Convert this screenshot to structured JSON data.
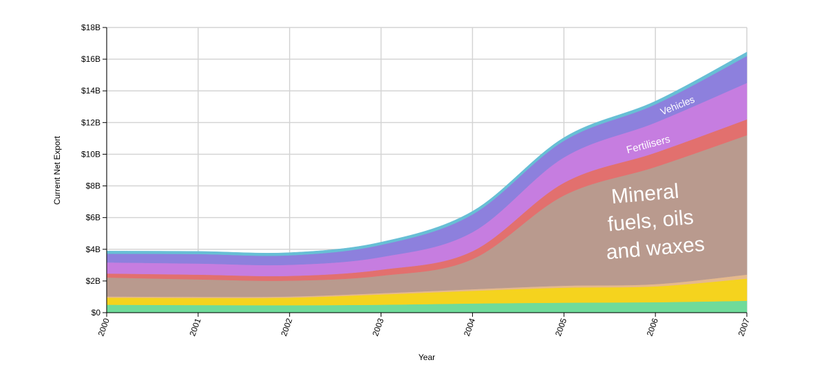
{
  "chart_data": {
    "type": "area",
    "stacked": true,
    "x": [
      2000,
      2001,
      2002,
      2003,
      2004,
      2005,
      2006,
      2007
    ],
    "xlabel": "Year",
    "ylabel": "Current Net Export",
    "ylim": [
      0,
      18
    ],
    "y_unit": "billions USD",
    "y_ticks": [
      "$0",
      "$2B",
      "$4B",
      "$6B",
      "$8B",
      "$10B",
      "$12B",
      "$14B",
      "$16B",
      "$18B"
    ],
    "x_ticks": [
      "2000",
      "2001",
      "2002",
      "2003",
      "2004",
      "2005",
      "2006",
      "2007"
    ],
    "grid": true,
    "series": [
      {
        "color": "#6fdb9a",
        "values": [
          0.5,
          0.48,
          0.47,
          0.5,
          0.58,
          0.63,
          0.66,
          0.75
        ]
      },
      {
        "color": "#f5d31e",
        "values": [
          0.45,
          0.45,
          0.48,
          0.65,
          0.8,
          0.95,
          1.0,
          1.4
        ]
      },
      {
        "color": "#e5b98c",
        "values": [
          0.07,
          0.07,
          0.07,
          0.08,
          0.1,
          0.12,
          0.14,
          0.25
        ]
      },
      {
        "name": "Mineral fuels, oils and waxes",
        "color": "#b99a8e",
        "values": [
          1.2,
          1.1,
          1.0,
          1.1,
          1.9,
          5.7,
          7.4,
          8.8
        ]
      },
      {
        "color": "#e2706e",
        "values": [
          0.25,
          0.3,
          0.3,
          0.38,
          0.5,
          0.8,
          0.9,
          1.0
        ]
      },
      {
        "name": "Fertilisers",
        "color": "#c67de0",
        "values": [
          0.7,
          0.7,
          0.7,
          0.8,
          1.2,
          1.6,
          1.9,
          2.3
        ]
      },
      {
        "name": "Vehicles",
        "color": "#8d80dd",
        "values": [
          0.55,
          0.6,
          0.6,
          0.77,
          1.12,
          1.05,
          1.15,
          1.7
        ]
      },
      {
        "color": "#67bfd5",
        "values": [
          0.17,
          0.17,
          0.17,
          0.17,
          0.2,
          0.2,
          0.2,
          0.25
        ]
      }
    ],
    "annotations": [
      "Mineral",
      "fuels, oils",
      "and waxes",
      "Fertilisers",
      "Vehicles"
    ]
  }
}
